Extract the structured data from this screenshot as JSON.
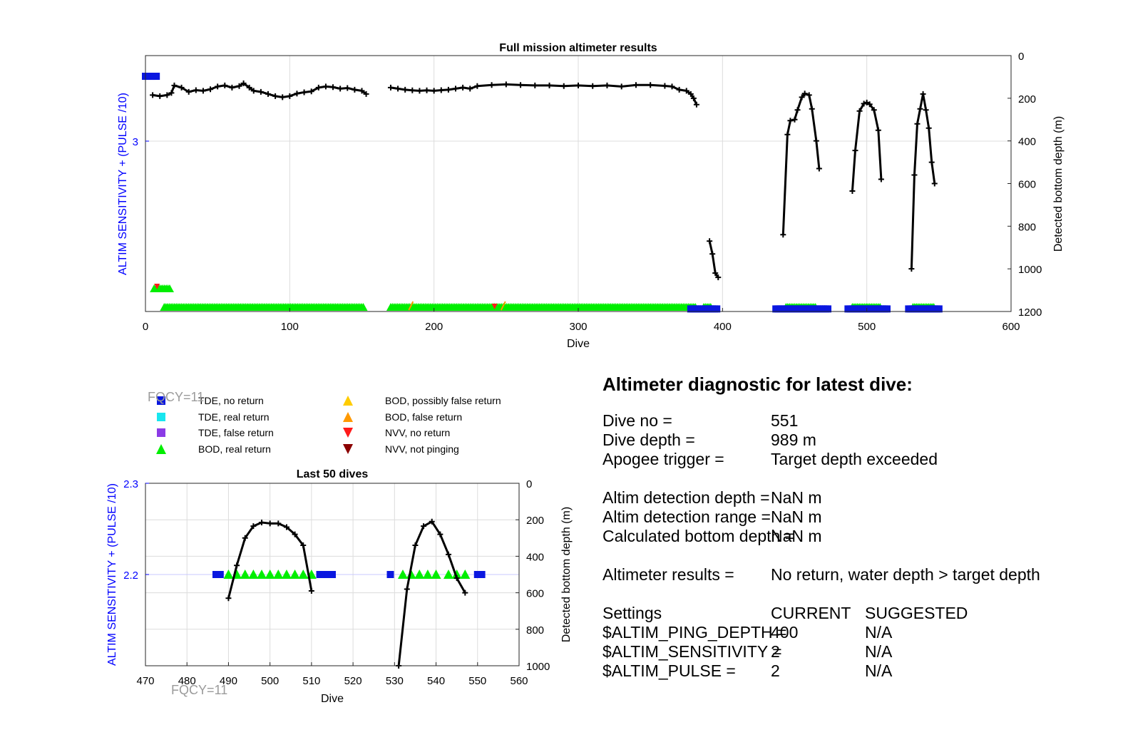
{
  "chart_data": [
    {
      "type": "scatter",
      "title": "Full mission altimeter results",
      "xlabel": "Dive",
      "ylabel": "ALTIM SENSITIVITY + (PULSE /10)",
      "y2label": "Detected bottom depth (m)",
      "xlim": [
        0,
        600
      ],
      "y2lim": [
        0,
        1200
      ],
      "y2_reversed": true,
      "x_ticks": [
        "0",
        "100",
        "200",
        "300",
        "400",
        "500",
        "600"
      ],
      "y_ticks": [
        "3"
      ],
      "y2_ticks": [
        "0",
        "200",
        "400",
        "600",
        "800",
        "1000",
        "1200"
      ],
      "grid": true,
      "bottom_depth_series": {
        "name": "Detected bottom depth",
        "segments": [
          {
            "x": [
              5,
              10,
              15,
              18,
              20,
              25,
              30,
              35,
              40,
              45,
              50,
              55,
              60,
              65,
              68,
              72,
              75,
              80,
              85,
              90,
              95,
              100,
              105,
              110,
              115,
              120,
              125,
              130,
              135,
              140,
              145,
              150,
              153
            ],
            "y": [
              185,
              190,
              185,
              175,
              140,
              150,
              170,
              162,
              165,
              158,
              145,
              140,
              150,
              143,
              130,
              150,
              165,
              170,
              180,
              190,
              195,
              190,
              178,
              172,
              168,
              150,
              145,
              148,
              155,
              152,
              160,
              165,
              180
            ]
          },
          {
            "x": [
              170,
              175,
              180,
              185,
              190,
              195,
              200,
              205,
              210,
              215,
              220,
              225,
              230,
              240,
              250,
              260,
              270,
              280,
              290,
              300,
              310,
              320,
              330,
              340,
              350,
              360,
              365,
              370,
              375,
              378,
              380,
              382
            ],
            "y": [
              150,
              155,
              160,
              163,
              165,
              163,
              165,
              162,
              160,
              155,
              150,
              155,
              143,
              138,
              135,
              138,
              140,
              140,
              143,
              140,
              143,
              140,
              145,
              138,
              138,
              142,
              145,
              160,
              165,
              180,
              200,
              230
            ]
          },
          {
            "x": [
              391,
              393,
              395,
              397
            ],
            "y": [
              870,
              930,
              1020,
              1040
            ]
          },
          {
            "x": [
              442,
              445,
              447,
              450,
              452,
              455,
              457,
              460,
              462,
              465,
              467
            ],
            "y": [
              840,
              370,
              305,
              300,
              255,
              195,
              178,
              185,
              250,
              400,
              530
            ]
          },
          {
            "x": [
              490,
              492,
              495,
              498,
              500,
              502,
              505,
              508,
              510
            ],
            "y": [
              635,
              445,
              260,
              225,
              220,
              228,
              255,
              350,
              580
            ]
          },
          {
            "x": [
              531,
              533,
              535,
              537,
              539,
              541,
              543,
              545,
              547
            ],
            "y": [
              1000,
              560,
              320,
              250,
              180,
              255,
              340,
              500,
              600
            ]
          }
        ]
      },
      "bod_real_return": [
        {
          "x0": 13,
          "x1": 152
        },
        {
          "x0": 170,
          "x1": 382
        },
        {
          "x0": 387,
          "x1": 392
        },
        {
          "x0": 444,
          "x1": 465
        },
        {
          "x0": 490,
          "x1": 510
        },
        {
          "x0": 532,
          "x1": 547
        }
      ],
      "tde_no_return": [
        {
          "x0": 0,
          "x1": 8,
          "y2": 97
        },
        {
          "x0": 378,
          "x1": 397,
          "y2": 1188
        },
        {
          "x0": 437,
          "x1": 473,
          "y2": 1188
        },
        {
          "x0": 487,
          "x1": 515,
          "y2": 1188
        },
        {
          "x0": 529,
          "x1": 551,
          "y2": 1188
        }
      ]
    },
    {
      "type": "scatter",
      "title": "Last 50 dives",
      "xlabel": "Dive",
      "ylabel": "ALTIM SENSITIVITY + (PULSE /10)",
      "y2label": "Detected bottom depth (m)",
      "xlim": [
        470,
        560
      ],
      "ylim": [
        2.1,
        2.3
      ],
      "y2lim": [
        0,
        1000
      ],
      "y2_reversed": true,
      "x_ticks": [
        "470",
        "480",
        "490",
        "500",
        "510",
        "520",
        "530",
        "540",
        "550",
        "560"
      ],
      "y_ticks": [
        "2.2",
        "2.3"
      ],
      "y2_ticks": [
        "0",
        "200",
        "400",
        "600",
        "800",
        "1000"
      ],
      "grid": true,
      "bottom_depth_series": {
        "name": "Detected bottom depth",
        "segments": [
          {
            "x": [
              490,
              492,
              494,
              496,
              498,
              500,
              502,
              504,
              506,
              508,
              510
            ],
            "y": [
              630,
              450,
              300,
              235,
              215,
              220,
              220,
              240,
              280,
              340,
              590
            ]
          },
          {
            "x": [
              531,
              533,
              535,
              537,
              539,
              541,
              543,
              545,
              547
            ],
            "y": [
              1000,
              580,
              340,
              235,
              210,
              280,
              390,
              520,
              600
            ]
          }
        ]
      },
      "tde_no_return": {
        "x": [
          487,
          488,
          512,
          513,
          514,
          515,
          529,
          550,
          551
        ],
        "y": 2.2
      },
      "bod_real_return": {
        "x": [
          490,
          492,
          494,
          496,
          498,
          500,
          502,
          504,
          506,
          508,
          510,
          532,
          534,
          536,
          538,
          540,
          543,
          545,
          547
        ],
        "y": 2.2
      }
    }
  ],
  "legend": {
    "items": [
      {
        "label": "TDE, no return",
        "marker": "square",
        "color": "#0a17e0"
      },
      {
        "label": "TDE, real return",
        "marker": "square",
        "color": "#18e6ef"
      },
      {
        "label": "TDE, false return",
        "marker": "square",
        "color": "#8b3be6"
      },
      {
        "label": "BOD, real return",
        "marker": "triangle-up",
        "color": "#00ee00"
      },
      {
        "label": "BOD, possibly false return",
        "marker": "triangle-up",
        "color": "#ffcc00"
      },
      {
        "label": "BOD, false return",
        "marker": "triangle-up",
        "color": "#ff9900"
      },
      {
        "label": "NVV, no return",
        "marker": "triangle-down",
        "color": "#ff1a1a"
      },
      {
        "label": "NVV, not pinging",
        "marker": "triangle-down",
        "color": "#8b0000"
      }
    ]
  },
  "fqcy_labels": [
    "FQCY=11",
    "FQCY=11"
  ],
  "diagnostic": {
    "title": "Altimeter diagnostic for latest dive:",
    "dive_no": {
      "label": "Dive no =",
      "value": "551"
    },
    "dive_depth": {
      "label": "Dive depth =",
      "value": "989 m"
    },
    "apogee": {
      "label": "Apogee trigger =",
      "value": "Target depth exceeded"
    },
    "detection_depth": {
      "label": "Altim detection depth =",
      "value": "NaN m"
    },
    "detection_range": {
      "label": "Altim detection range =",
      "value": "NaN m"
    },
    "bottom_depth": {
      "label": "Calculated bottom depth =",
      "value": "NaN m"
    },
    "results": {
      "label": "Altimeter results =",
      "value": "No return, water depth > target depth"
    },
    "settings": {
      "label": "Settings",
      "current": "CURRENT",
      "suggested": "SUGGESTED"
    },
    "ping_depth": {
      "label": "$ALTIM_PING_DEPTH =",
      "current": "400",
      "suggested": "N/A"
    },
    "sensitivity": {
      "label": "$ALTIM_SENSITIVITY =",
      "current": "2",
      "suggested": "N/A"
    },
    "pulse": {
      "label": "$ALTIM_PULSE =",
      "current": "2",
      "suggested": "N/A"
    }
  },
  "colors": {
    "depth_line": "#000000",
    "axis_left": "#0000ff",
    "grid": "#dcdcdc",
    "tde_no_return": "#0a17e0",
    "bod_real_return": "#00ee00",
    "nvv_no_return": "#ff1a1a",
    "bod_false_return": "#ff9900",
    "fqcy": "#9b9b9b"
  }
}
